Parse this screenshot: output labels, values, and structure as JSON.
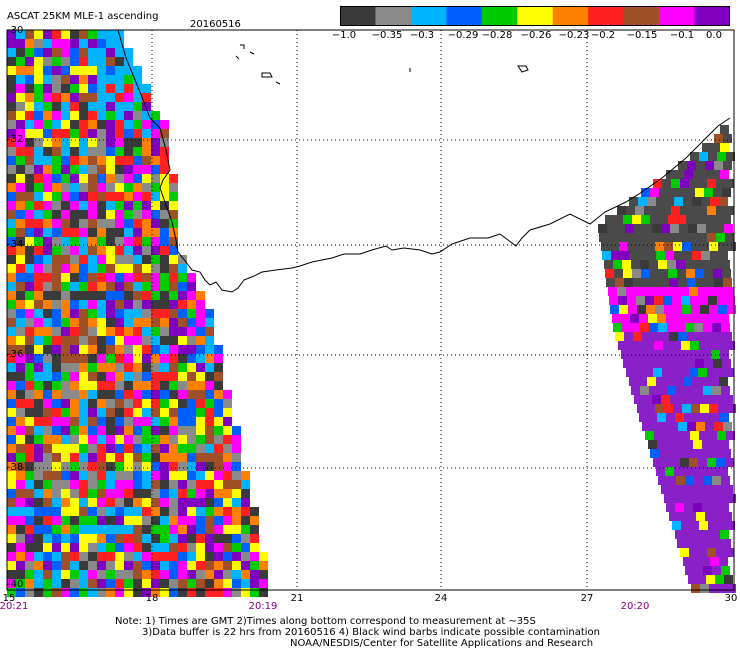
{
  "title": "ASCAT 25KM MLE-1 ascending",
  "date": "20160516",
  "legend": {
    "labels": [
      "−1.0",
      "−0.35",
      "−0.3",
      "−0.29",
      "−0.28",
      "−0.26",
      "−0.23",
      "−0.2",
      "−0.15",
      "−0.1",
      "0.0"
    ],
    "colors": [
      "#3a3a3a",
      "#8a8a8a",
      "#00b4ff",
      "#0060ff",
      "#00cc00",
      "#ffff00",
      "#ff8000",
      "#ff2020",
      "#a05028",
      "#ff00ff",
      "#8000c0"
    ]
  },
  "map": {
    "lon_ticks": [
      "15",
      "18",
      "21",
      "24",
      "27",
      "30"
    ],
    "lat_ticks": [
      "-30",
      "-32",
      "-34",
      "-36",
      "-38",
      "-40"
    ],
    "time_labels": [
      "20:21",
      "20:19",
      "20:20"
    ]
  },
  "notes": {
    "line1": "Note: 1) Times are GMT 2)Times along bottom correspond to measurement at ~35S",
    "line2": "3)Data buffer is 22 hrs from 20160516 4) Black wind barbs indicate possible contamination",
    "line3": "NOAA/NESDIS/Center for Satellite Applications and Research"
  }
}
